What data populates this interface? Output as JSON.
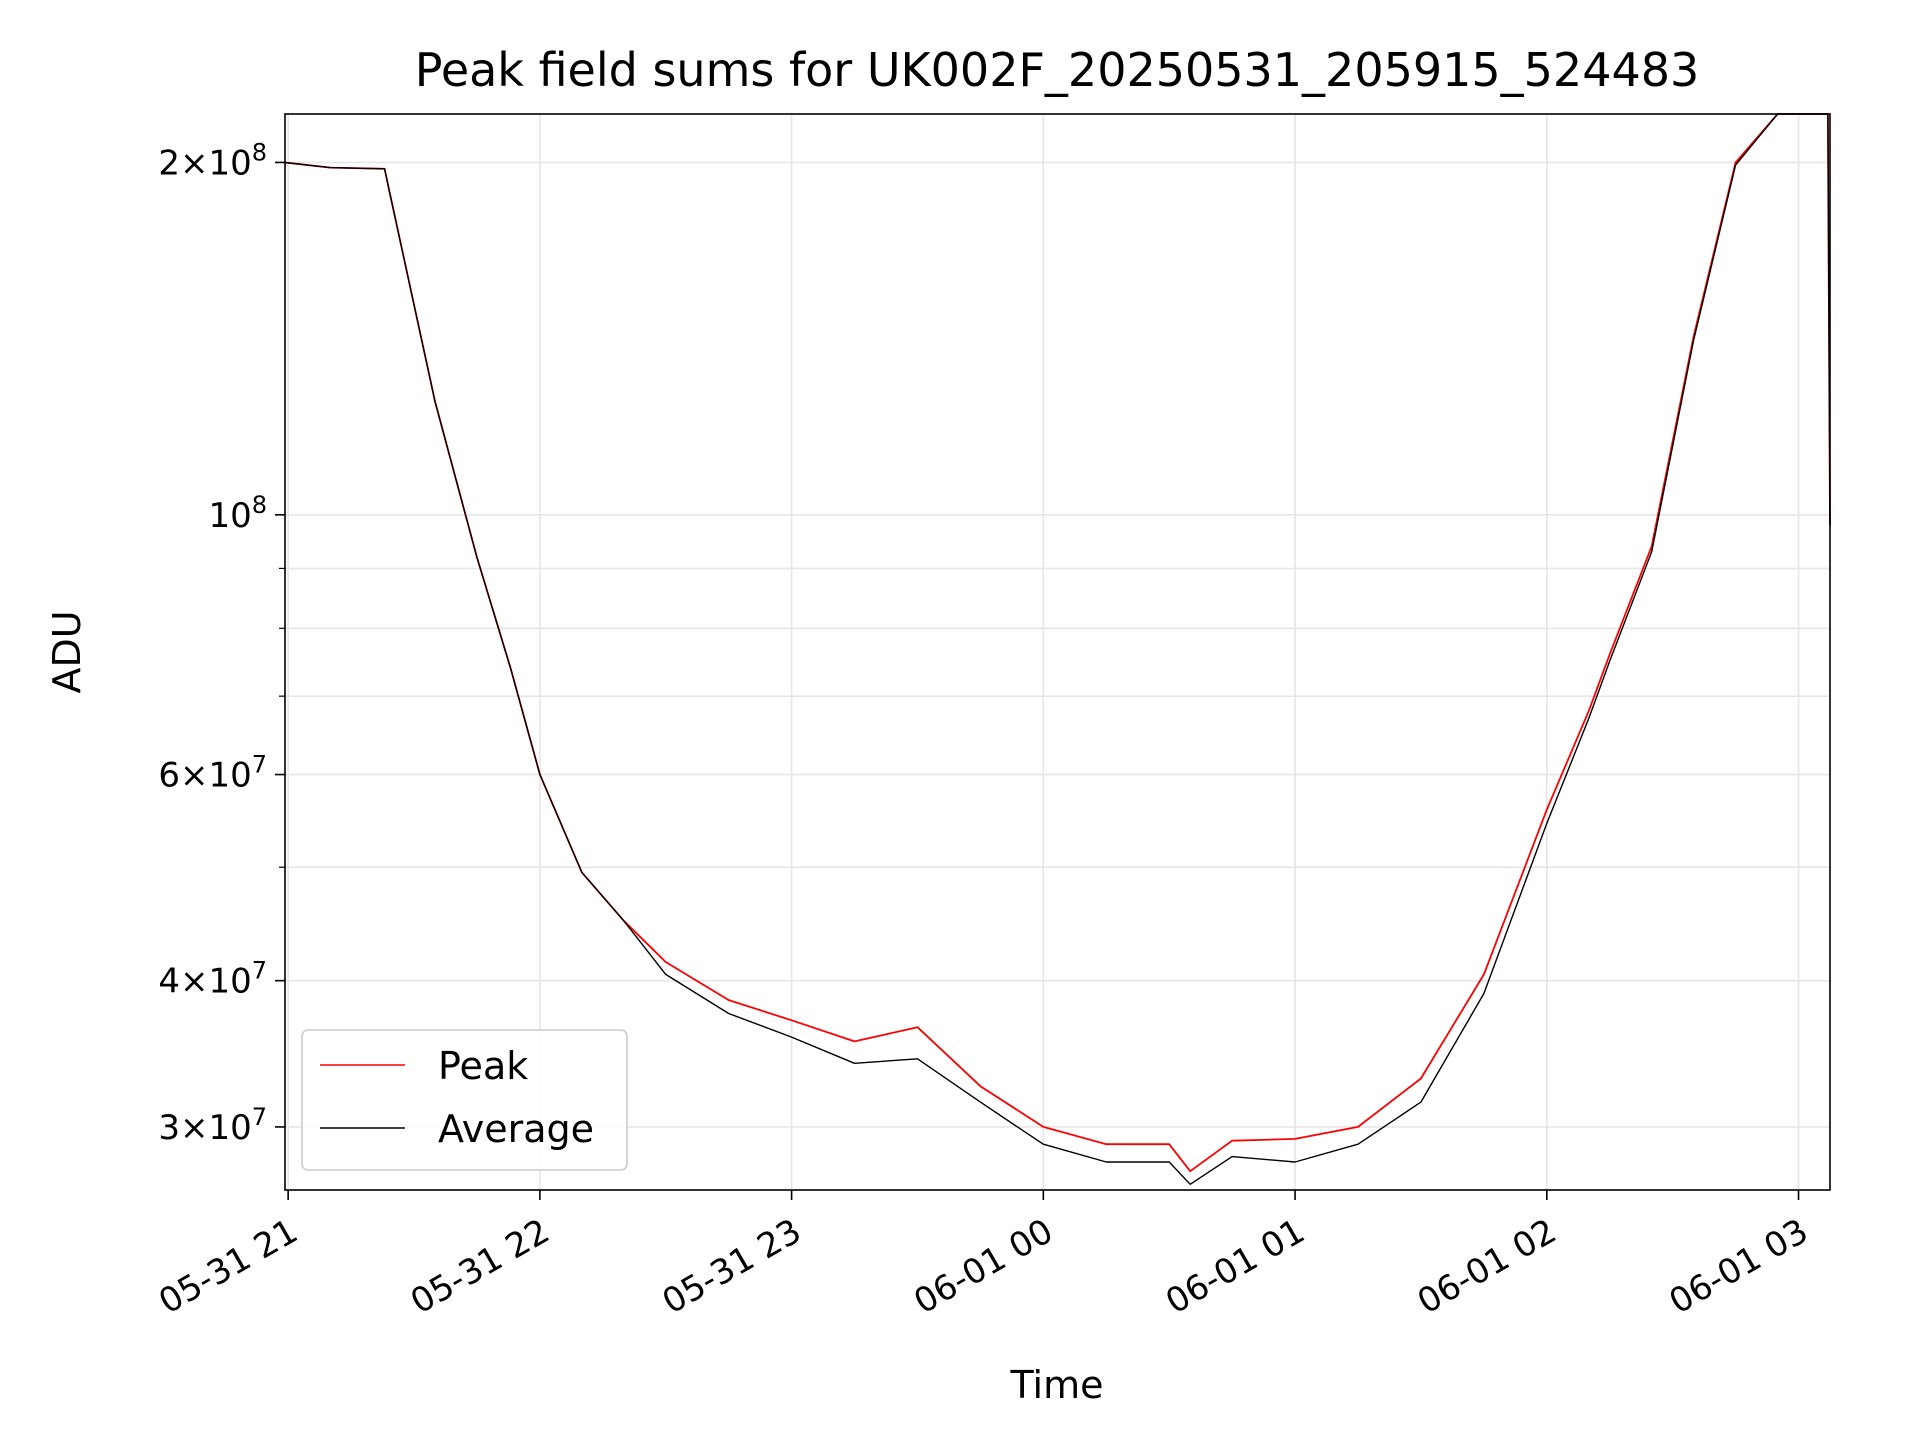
{
  "chart_data": {
    "type": "line",
    "title": "Peak field sums for UK002F_20250531_205915_524483",
    "xlabel": "Time",
    "ylabel": "ADU",
    "y_scale": "log",
    "ylim": [
      26500000,
      220000000
    ],
    "xlim": [
      "05-31 20:59:15",
      "06-01 03:07:30"
    ],
    "grid": true,
    "legend_position": "lower-left",
    "x_ticks": [
      {
        "value": "05-31 21:00",
        "label": "05-31 21"
      },
      {
        "value": "05-31 22:00",
        "label": "05-31 22"
      },
      {
        "value": "05-31 23:00",
        "label": "05-31 23"
      },
      {
        "value": "06-01 00:00",
        "label": "06-01 00"
      },
      {
        "value": "06-01 01:00",
        "label": "06-01 01"
      },
      {
        "value": "06-01 02:00",
        "label": "06-01 02"
      },
      {
        "value": "06-01 03:00",
        "label": "06-01 03"
      }
    ],
    "y_major_ticks": [
      {
        "value": 30000000,
        "mant": "3",
        "exp": "7"
      },
      {
        "value": 40000000,
        "mant": "4",
        "exp": "7"
      },
      {
        "value": 60000000,
        "mant": "6",
        "exp": "7"
      },
      {
        "value": 100000000,
        "mant": "",
        "exp": "8"
      },
      {
        "value": 200000000,
        "mant": "2",
        "exp": "8"
      }
    ],
    "y_minor_ticks": [
      50000000,
      70000000,
      80000000,
      90000000
    ],
    "series": [
      {
        "name": "Peak",
        "color": "#ff0000",
        "x": [
          "05-31 20:59:15",
          "05-31 21:10",
          "05-31 21:23",
          "05-31 21:24",
          "05-31 21:35",
          "05-31 21:45",
          "05-31 21:53",
          "05-31 22:00",
          "05-31 22:10",
          "05-31 22:20",
          "05-31 22:30",
          "05-31 22:45",
          "05-31 23:00",
          "05-31 23:15",
          "05-31 23:30",
          "05-31 23:45",
          "06-01 00:00",
          "06-01 00:15",
          "06-01 00:30",
          "06-01 00:35",
          "06-01 00:45",
          "06-01 01:00",
          "06-01 01:15",
          "06-01 01:30",
          "06-01 01:45",
          "06-01 02:00",
          "06-01 02:10",
          "06-01 02:15",
          "06-01 02:25",
          "06-01 02:35",
          "06-01 02:45",
          "06-01 02:55",
          "06-01 03:05",
          "06-01 03:07",
          "06-01 03:07:30"
        ],
        "y": [
          200000000,
          198000000,
          197500000,
          190000000,
          125000000,
          92000000,
          74000000,
          60000000,
          49500000,
          45000000,
          41500000,
          38500000,
          37000000,
          35500000,
          36500000,
          32500000,
          30000000,
          29000000,
          29000000,
          27500000,
          29200000,
          29300000,
          30000000,
          33000000,
          40500000,
          56000000,
          68000000,
          76000000,
          94000000,
          142000000,
          200000000,
          222000000,
          225000000,
          225000000,
          98000000
        ]
      },
      {
        "name": "Average",
        "color": "#000000",
        "x": [
          "05-31 20:59:15",
          "05-31 21:10",
          "05-31 21:23",
          "05-31 21:24",
          "05-31 21:35",
          "05-31 21:45",
          "05-31 21:53",
          "05-31 22:00",
          "05-31 22:10",
          "05-31 22:20",
          "05-31 22:30",
          "05-31 22:45",
          "05-31 23:00",
          "05-31 23:15",
          "05-31 23:30",
          "05-31 23:45",
          "06-01 00:00",
          "06-01 00:15",
          "06-01 00:30",
          "06-01 00:35",
          "06-01 00:45",
          "06-01 01:00",
          "06-01 01:15",
          "06-01 01:30",
          "06-01 01:45",
          "06-01 02:00",
          "06-01 02:10",
          "06-01 02:15",
          "06-01 02:25",
          "06-01 02:35",
          "06-01 02:45",
          "06-01 02:55",
          "06-01 03:05",
          "06-01 03:07",
          "06-01 03:07:30"
        ],
        "y": [
          200000000,
          198000000,
          197500000,
          190000000,
          125000000,
          92000000,
          74000000,
          60000000,
          49500000,
          45000000,
          40500000,
          37500000,
          35800000,
          34000000,
          34300000,
          31500000,
          29000000,
          28000000,
          28000000,
          26800000,
          28300000,
          28000000,
          29000000,
          31500000,
          39000000,
          54500000,
          67000000,
          75000000,
          93000000,
          141000000,
          199000000,
          222000000,
          225000000,
          225000000,
          98000000
        ]
      }
    ]
  }
}
